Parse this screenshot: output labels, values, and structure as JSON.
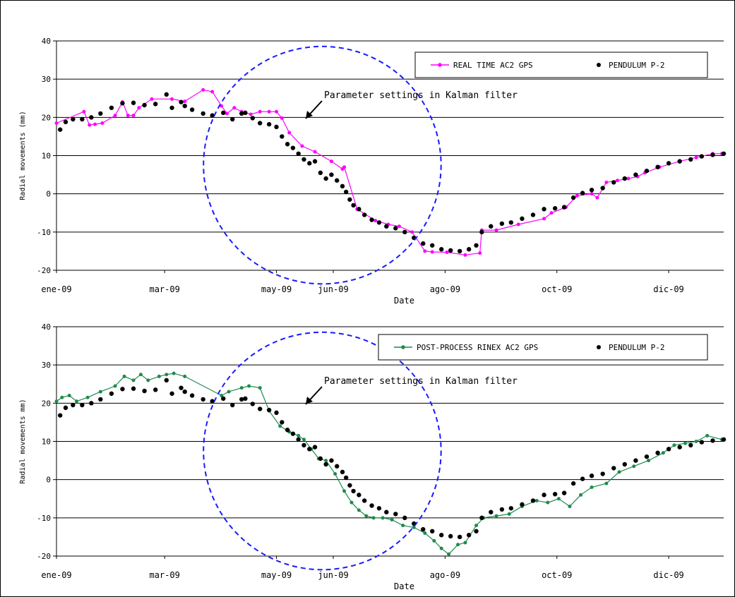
{
  "chart_data": [
    {
      "type": "line",
      "ylabel": "Radial movements (mm)",
      "xlabel": "Date",
      "ylim": [
        -20,
        40
      ],
      "yticks": [
        -20,
        -10,
        0,
        10,
        20,
        30,
        40
      ],
      "xlim": [
        "2009-01-01",
        "2009-12-31"
      ],
      "xticks": [
        {
          "label": "ene-09",
          "date": "2009-01-01"
        },
        {
          "label": "mar-09",
          "date": "2009-03-01"
        },
        {
          "label": "may-09",
          "date": "2009-05-01"
        },
        {
          "label": "jun-09",
          "date": "2009-06-01"
        },
        {
          "label": "ago-09",
          "date": "2009-08-01"
        },
        {
          "label": "oct-09",
          "date": "2009-10-01"
        },
        {
          "label": "dic-09",
          "date": "2009-12-01"
        }
      ],
      "grid": "horizontal",
      "legend_position": "top-right",
      "annotation": {
        "text": "Parameter settings in Kalman filter",
        "center": [
          "2009-05-26",
          7.5
        ],
        "radius_days": 18
      },
      "series": [
        {
          "name": "REAL TIME AC2 GPS",
          "color": "#ff00ff",
          "style": "line-markers",
          "x": [
            "2009-01-01",
            "2009-01-16",
            "2009-01-19",
            "2009-01-22",
            "2009-01-26",
            "2009-02-02",
            "2009-02-06",
            "2009-02-09",
            "2009-02-12",
            "2009-02-15",
            "2009-02-22",
            "2009-03-05",
            "2009-03-12",
            "2009-03-22",
            "2009-03-27",
            "2009-04-01",
            "2009-04-04",
            "2009-04-08",
            "2009-04-12",
            "2009-04-17",
            "2009-04-22",
            "2009-04-27",
            "2009-05-01",
            "2009-05-04",
            "2009-05-08",
            "2009-05-15",
            "2009-05-22",
            "2009-05-31",
            "2009-06-06",
            "2009-06-07",
            "2009-06-14",
            "2009-06-24",
            "2009-07-01",
            "2009-07-07",
            "2009-07-14",
            "2009-07-21",
            "2009-07-25",
            "2009-08-02",
            "2009-08-12",
            "2009-08-20",
            "2009-08-21",
            "2009-08-29",
            "2009-09-10",
            "2009-09-24",
            "2009-09-28",
            "2009-10-06",
            "2009-10-12",
            "2009-10-20",
            "2009-10-23",
            "2009-10-28",
            "2009-11-03",
            "2009-11-09",
            "2009-11-14",
            "2009-11-18",
            "2009-11-26",
            "2009-12-07",
            "2009-12-16",
            "2009-12-25",
            "2009-12-30"
          ],
          "y": [
            18.5,
            21.5,
            18,
            18.2,
            18.5,
            20.5,
            24,
            20.5,
            20.5,
            22.5,
            24.8,
            24.8,
            24.2,
            27.2,
            26.7,
            23,
            21,
            22.5,
            21.5,
            20.8,
            21.5,
            21.5,
            21.5,
            19.8,
            16,
            12.5,
            11,
            8.5,
            6.5,
            7,
            -4,
            -7,
            -8,
            -8.5,
            -10,
            -15,
            -15.2,
            -15.3,
            -16,
            -15.5,
            -9.5,
            -9.5,
            -8,
            -6.5,
            -5,
            -3.5,
            -0.5,
            0,
            -1,
            3,
            3.5,
            4,
            4.5,
            5.5,
            7,
            8.5,
            9.5,
            10.5,
            10.5
          ]
        },
        {
          "name": "PENDULUM P-2",
          "color": "#000000",
          "style": "markers",
          "x": [
            "2009-01-03",
            "2009-01-06",
            "2009-01-10",
            "2009-01-15",
            "2009-01-20",
            "2009-01-25",
            "2009-01-31",
            "2009-02-06",
            "2009-02-12",
            "2009-02-18",
            "2009-02-24",
            "2009-03-02",
            "2009-03-05",
            "2009-03-10",
            "2009-03-12",
            "2009-03-16",
            "2009-03-22",
            "2009-03-27",
            "2009-04-02",
            "2009-04-07",
            "2009-04-12",
            "2009-04-14",
            "2009-04-18",
            "2009-04-22",
            "2009-04-27",
            "2009-05-01",
            "2009-05-04",
            "2009-05-07",
            "2009-05-10",
            "2009-05-13",
            "2009-05-16",
            "2009-05-19",
            "2009-05-22",
            "2009-05-25",
            "2009-05-28",
            "2009-05-31",
            "2009-06-03",
            "2009-06-06",
            "2009-06-08",
            "2009-06-10",
            "2009-06-12",
            "2009-06-15",
            "2009-06-18",
            "2009-06-22",
            "2009-06-26",
            "2009-06-30",
            "2009-07-05",
            "2009-07-10",
            "2009-07-15",
            "2009-07-20",
            "2009-07-25",
            "2009-07-30",
            "2009-08-04",
            "2009-08-09",
            "2009-08-14",
            "2009-08-18",
            "2009-08-21",
            "2009-08-26",
            "2009-09-01",
            "2009-09-06",
            "2009-09-12",
            "2009-09-18",
            "2009-09-24",
            "2009-09-30",
            "2009-10-05",
            "2009-10-10",
            "2009-10-15",
            "2009-10-20",
            "2009-10-26",
            "2009-11-01",
            "2009-11-07",
            "2009-11-13",
            "2009-11-19",
            "2009-11-25",
            "2009-12-01",
            "2009-12-07",
            "2009-12-13",
            "2009-12-19",
            "2009-12-25",
            "2009-12-31"
          ],
          "y": [
            16.8,
            18.8,
            19.5,
            19.5,
            20,
            21,
            22.5,
            23.7,
            23.8,
            23.2,
            23.5,
            26,
            22.5,
            24,
            23,
            22,
            21,
            20.5,
            21.2,
            19.5,
            21,
            21.2,
            19.8,
            18.5,
            18.2,
            17.5,
            15,
            13,
            12,
            10.5,
            9,
            8,
            8.5,
            5.5,
            4,
            5,
            3.5,
            2,
            0.5,
            -1.5,
            -3,
            -4,
            -5.5,
            -6.8,
            -7.5,
            -8.5,
            -9,
            -10,
            -11.5,
            -13,
            -13.5,
            -14.5,
            -14.8,
            -15,
            -14.5,
            -13.5,
            -10,
            -8.5,
            -7.8,
            -7.5,
            -6.5,
            -5.5,
            -4,
            -3.8,
            -3.5,
            -1,
            0.2,
            1,
            1.5,
            3,
            4,
            5,
            6,
            7,
            8,
            8.5,
            9,
            9.8,
            10.2,
            10.5
          ]
        }
      ]
    },
    {
      "type": "line",
      "ylabel": "Radial movements mm)",
      "xlabel": "Date",
      "ylim": [
        -20,
        40
      ],
      "yticks": [
        -20,
        -10,
        0,
        10,
        20,
        30,
        40
      ],
      "xlim": [
        "2009-01-01",
        "2009-12-31"
      ],
      "xticks": [
        {
          "label": "ene-09",
          "date": "2009-01-01"
        },
        {
          "label": "mar-09",
          "date": "2009-03-01"
        },
        {
          "label": "may-09",
          "date": "2009-05-01"
        },
        {
          "label": "jun-09",
          "date": "2009-06-01"
        },
        {
          "label": "ago-09",
          "date": "2009-08-01"
        },
        {
          "label": "oct-09",
          "date": "2009-10-01"
        },
        {
          "label": "dic-09",
          "date": "2009-12-01"
        }
      ],
      "grid": "horizontal",
      "legend_position": "top-right",
      "annotation": {
        "text": "Parameter settings in Kalman filter",
        "center": [
          "2009-05-26",
          7.5
        ],
        "radius_days": 18
      },
      "series": [
        {
          "name": "POST-PROCESS RINEX AC2 GPS",
          "color": "#1f8a4c",
          "style": "line-markers",
          "x": [
            "2009-01-01",
            "2009-01-04",
            "2009-01-08",
            "2009-01-12",
            "2009-01-18",
            "2009-01-25",
            "2009-02-02",
            "2009-02-07",
            "2009-02-12",
            "2009-02-16",
            "2009-02-20",
            "2009-02-26",
            "2009-03-02",
            "2009-03-06",
            "2009-03-12",
            "2009-04-01",
            "2009-04-05",
            "2009-04-12",
            "2009-04-16",
            "2009-04-22",
            "2009-04-27",
            "2009-05-03",
            "2009-05-08",
            "2009-05-13",
            "2009-05-16",
            "2009-05-20",
            "2009-05-24",
            "2009-05-28",
            "2009-06-02",
            "2009-06-07",
            "2009-06-11",
            "2009-06-15",
            "2009-06-19",
            "2009-06-23",
            "2009-06-28",
            "2009-07-03",
            "2009-07-09",
            "2009-07-15",
            "2009-07-21",
            "2009-07-26",
            "2009-07-30",
            "2009-08-03",
            "2009-08-08",
            "2009-08-12",
            "2009-08-18",
            "2009-08-22",
            "2009-08-29",
            "2009-09-05",
            "2009-09-12",
            "2009-09-20",
            "2009-09-26",
            "2009-10-02",
            "2009-10-08",
            "2009-10-14",
            "2009-10-20",
            "2009-10-28",
            "2009-11-04",
            "2009-11-12",
            "2009-11-20",
            "2009-11-28",
            "2009-12-04",
            "2009-12-10",
            "2009-12-16",
            "2009-12-22",
            "2009-12-30"
          ],
          "y": [
            20.5,
            21.5,
            22,
            20.5,
            21.5,
            23,
            24.5,
            27,
            26,
            27.5,
            26,
            27,
            27.5,
            27.8,
            27,
            22,
            23,
            24,
            24.5,
            24,
            18,
            14,
            12.5,
            11.5,
            10.5,
            8,
            5.5,
            5,
            1.5,
            -3,
            -6,
            -8,
            -9.5,
            -10,
            -10,
            -10.5,
            -12,
            -12.5,
            -14,
            -16,
            -18,
            -19.5,
            -17,
            -16.5,
            -12,
            -10,
            -9.5,
            -9,
            -7,
            -5.5,
            -6,
            -5,
            -7,
            -4,
            -2,
            -1,
            2,
            3.5,
            5,
            7,
            9,
            9.5,
            10,
            11.5,
            10.5
          ]
        },
        {
          "name": "PENDULUM P-2",
          "color": "#000000",
          "style": "markers",
          "x": [
            "2009-01-03",
            "2009-01-06",
            "2009-01-10",
            "2009-01-15",
            "2009-01-20",
            "2009-01-25",
            "2009-01-31",
            "2009-02-06",
            "2009-02-12",
            "2009-02-18",
            "2009-02-24",
            "2009-03-02",
            "2009-03-05",
            "2009-03-10",
            "2009-03-12",
            "2009-03-16",
            "2009-03-22",
            "2009-03-27",
            "2009-04-02",
            "2009-04-07",
            "2009-04-12",
            "2009-04-14",
            "2009-04-18",
            "2009-04-22",
            "2009-04-27",
            "2009-05-01",
            "2009-05-04",
            "2009-05-07",
            "2009-05-10",
            "2009-05-13",
            "2009-05-16",
            "2009-05-19",
            "2009-05-22",
            "2009-05-25",
            "2009-05-28",
            "2009-05-31",
            "2009-06-03",
            "2009-06-06",
            "2009-06-08",
            "2009-06-10",
            "2009-06-12",
            "2009-06-15",
            "2009-06-18",
            "2009-06-22",
            "2009-06-26",
            "2009-06-30",
            "2009-07-05",
            "2009-07-10",
            "2009-07-15",
            "2009-07-20",
            "2009-07-25",
            "2009-07-30",
            "2009-08-04",
            "2009-08-09",
            "2009-08-14",
            "2009-08-18",
            "2009-08-21",
            "2009-08-26",
            "2009-09-01",
            "2009-09-06",
            "2009-09-12",
            "2009-09-18",
            "2009-09-24",
            "2009-09-30",
            "2009-10-05",
            "2009-10-10",
            "2009-10-15",
            "2009-10-20",
            "2009-10-26",
            "2009-11-01",
            "2009-11-07",
            "2009-11-13",
            "2009-11-19",
            "2009-11-25",
            "2009-12-01",
            "2009-12-07",
            "2009-12-13",
            "2009-12-19",
            "2009-12-25",
            "2009-12-31"
          ],
          "y": [
            16.8,
            18.8,
            19.5,
            19.5,
            20,
            21,
            22.5,
            23.7,
            23.8,
            23.2,
            23.5,
            26,
            22.5,
            24,
            23,
            22,
            21,
            20.5,
            21.2,
            19.5,
            21,
            21.2,
            19.8,
            18.5,
            18.2,
            17.5,
            15,
            13,
            12,
            10.5,
            9,
            8,
            8.5,
            5.5,
            4,
            5,
            3.5,
            2,
            0.5,
            -1.5,
            -3,
            -4,
            -5.5,
            -6.8,
            -7.5,
            -8.5,
            -9,
            -10,
            -11.5,
            -13,
            -13.5,
            -14.5,
            -14.8,
            -15,
            -14.5,
            -13.5,
            -10,
            -8.5,
            -7.8,
            -7.5,
            -6.5,
            -5.5,
            -4,
            -3.8,
            -3.5,
            -1,
            0.2,
            1,
            1.5,
            3,
            4,
            5,
            6,
            7,
            8,
            8.5,
            9,
            9.8,
            10.2,
            10.5
          ]
        }
      ]
    }
  ]
}
